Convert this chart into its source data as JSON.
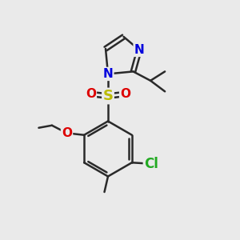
{
  "bg_color": "#eaeaea",
  "bond_color": "#2a2a2a",
  "bond_width": 1.8,
  "atom_colors": {
    "N": "#0000dd",
    "O": "#dd0000",
    "S": "#bbbb00",
    "Cl": "#22aa22",
    "C": "#2a2a2a"
  },
  "font_size_atom": 11
}
